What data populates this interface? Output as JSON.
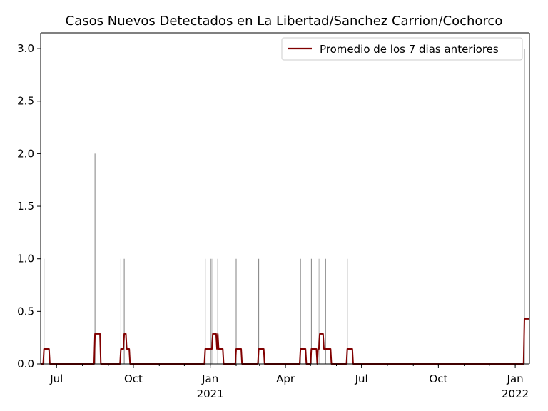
{
  "chart_data": {
    "type": "bar+line",
    "title": "Casos Nuevos Detectados en La Libertad/Sanchez Carrion/Cochorco",
    "xlabel": "",
    "ylabel": "",
    "x_range": [
      "2020-06-12",
      "2022-01-18"
    ],
    "ylim": [
      0,
      3.15
    ],
    "y_ticks": [
      0.0,
      0.5,
      1.0,
      1.5,
      2.0,
      2.5,
      3.0
    ],
    "y_tick_labels": [
      "0.0",
      "0.5",
      "1.0",
      "1.5",
      "2.0",
      "2.5",
      "3.0"
    ],
    "x_ticks": [
      {
        "date": "2020-07-01",
        "label": "Jul",
        "sublabel": ""
      },
      {
        "date": "2020-10-01",
        "label": "Oct",
        "sublabel": ""
      },
      {
        "date": "2021-01-01",
        "label": "Jan",
        "sublabel": "2021"
      },
      {
        "date": "2021-04-01",
        "label": "Apr",
        "sublabel": ""
      },
      {
        "date": "2021-07-01",
        "label": "Jul",
        "sublabel": ""
      },
      {
        "date": "2021-10-01",
        "label": "Oct",
        "sublabel": ""
      },
      {
        "date": "2022-01-01",
        "label": "Jan",
        "sublabel": "2022"
      }
    ],
    "grid": false,
    "legend_position": "top-right",
    "daily_cases": {
      "color": "#808080",
      "points": [
        {
          "date": "2020-06-16",
          "value": 1
        },
        {
          "date": "2020-08-16",
          "value": 2
        },
        {
          "date": "2020-09-16",
          "value": 1
        },
        {
          "date": "2020-09-20",
          "value": 1
        },
        {
          "date": "2020-12-26",
          "value": 1
        },
        {
          "date": "2021-01-02",
          "value": 1
        },
        {
          "date": "2021-01-04",
          "value": 1
        },
        {
          "date": "2021-01-10",
          "value": 1
        },
        {
          "date": "2021-02-01",
          "value": 1
        },
        {
          "date": "2021-02-28",
          "value": 1
        },
        {
          "date": "2021-04-19",
          "value": 1
        },
        {
          "date": "2021-05-02",
          "value": 1
        },
        {
          "date": "2021-05-10",
          "value": 1
        },
        {
          "date": "2021-05-12",
          "value": 1
        },
        {
          "date": "2021-05-19",
          "value": 1
        },
        {
          "date": "2021-06-14",
          "value": 1
        },
        {
          "date": "2022-01-12",
          "value": 3
        }
      ]
    },
    "series": [
      {
        "name": "Promedio de los 7 dias anteriores",
        "color": "#800000"
      }
    ]
  }
}
